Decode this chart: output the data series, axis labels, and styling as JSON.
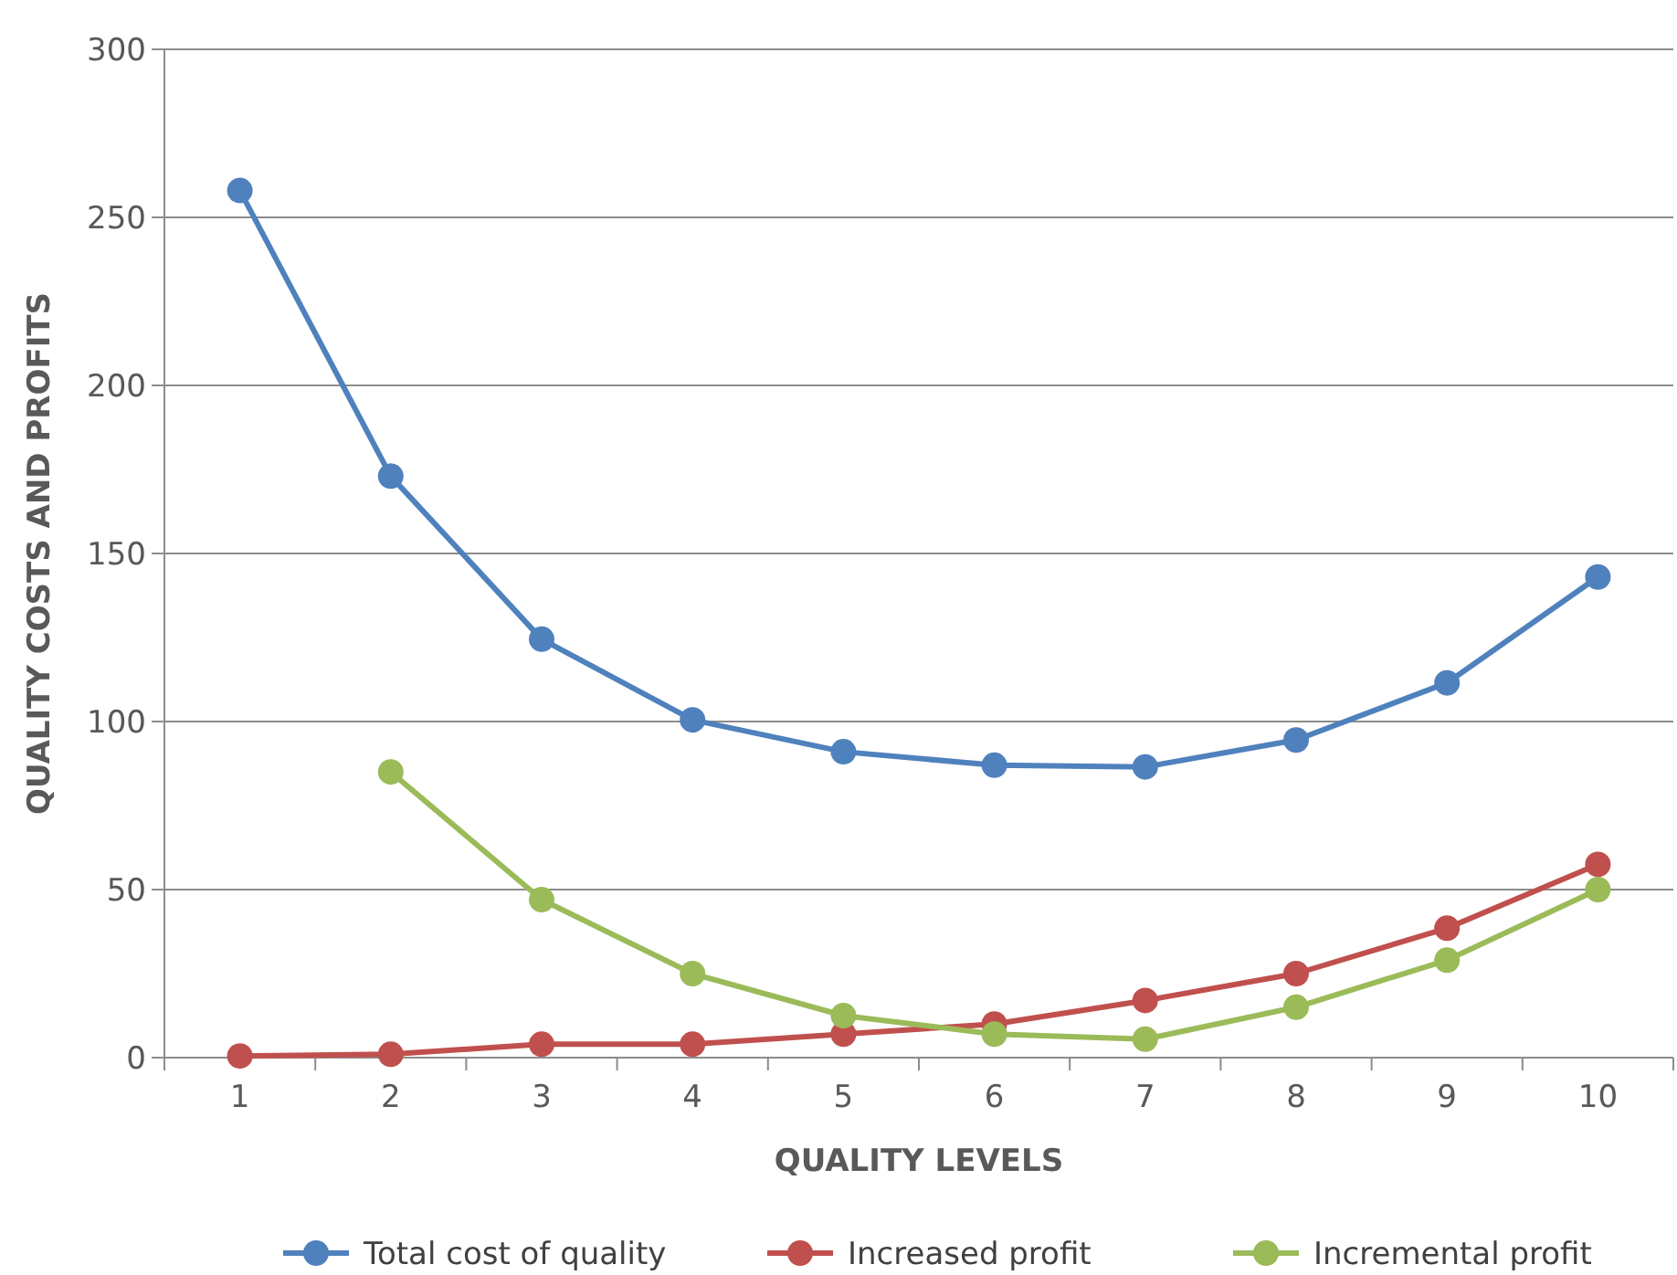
{
  "chart_data": {
    "type": "line",
    "xlabel": "QUALITY LEVELS",
    "ylabel": "QUALITY COSTS AND PROFITS",
    "categories": [
      "1",
      "2",
      "3",
      "4",
      "5",
      "6",
      "7",
      "8",
      "9",
      "10"
    ],
    "series": [
      {
        "name": "Total cost of quality",
        "color": "#4f81bd",
        "values": [
          258,
          173,
          124.5,
          100.5,
          91,
          87,
          86.5,
          94.5,
          111.5,
          143
        ]
      },
      {
        "name": "Increased profit",
        "color": "#c0504d",
        "values": [
          0.5,
          1,
          4,
          4,
          7,
          10,
          17,
          25,
          38.5,
          57.5
        ]
      },
      {
        "name": "Incremental profit",
        "color": "#9bbb59",
        "values": [
          null,
          85,
          47,
          25,
          12.5,
          7,
          5.5,
          15,
          29,
          50
        ]
      }
    ],
    "ylim": [
      0,
      300
    ],
    "yticks": [
      0,
      50,
      100,
      150,
      200,
      250,
      300
    ],
    "grid": "y",
    "legend": "bottom",
    "marker": "circle",
    "line_style": "solid"
  }
}
